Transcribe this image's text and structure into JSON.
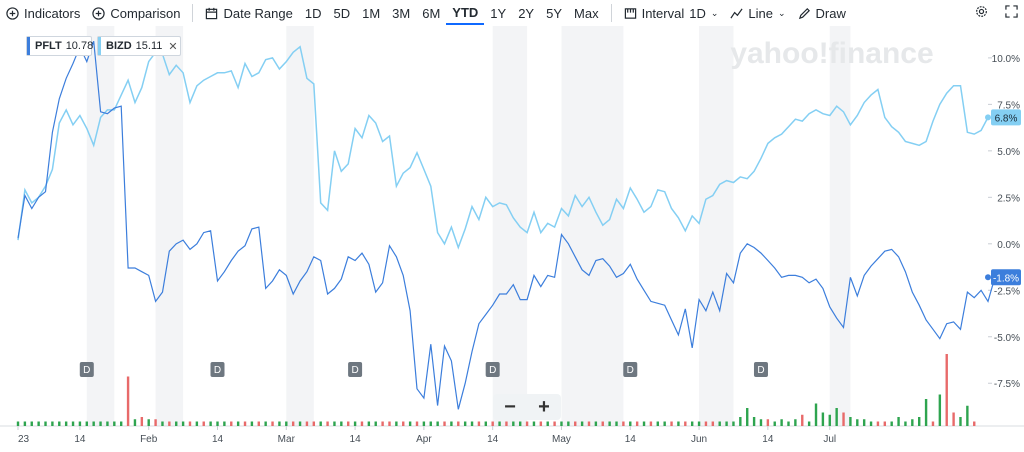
{
  "toolbar": {
    "indicators": "Indicators",
    "comparison": "Comparison",
    "date_range": "Date Range",
    "ranges": [
      "1D",
      "5D",
      "1M",
      "3M",
      "6M",
      "YTD",
      "1Y",
      "2Y",
      "5Y",
      "Max"
    ],
    "active_range": "YTD",
    "interval_label": "Interval",
    "interval_value": "1D",
    "chart_type": "Line",
    "draw": "Draw"
  },
  "legend": [
    {
      "symbol": "PFLT",
      "value": "10.78",
      "color": "#3c7edc"
    },
    {
      "symbol": "BIZD",
      "value": "15.11",
      "color": "#84cff3"
    }
  ],
  "watermark": "yahoo!finance",
  "zoom": {
    "minus": "−",
    "plus": "+"
  },
  "colors": {
    "pflt": "#3c7edc",
    "bizd": "#84cff3",
    "up": "#2ea44f",
    "down": "#e86a6a",
    "band": "#f3f4f6"
  },
  "chart_data": {
    "type": "line",
    "x_ticks": [
      "23",
      "14",
      "Feb",
      "14",
      "Mar",
      "14",
      "Apr",
      "14",
      "May",
      "14",
      "Jun",
      "14",
      "Jul"
    ],
    "x_tick_index": [
      0,
      9,
      19,
      29,
      39,
      49,
      59,
      69,
      79,
      89,
      99,
      109,
      118
    ],
    "y_ticks": [
      10,
      7.5,
      5,
      2.5,
      0,
      -2.5,
      -5,
      -7.5
    ],
    "y_tick_labels": [
      "10.0%",
      "7.5%",
      "5.0%",
      "2.5%",
      "0.0%",
      "-2.5%",
      "-5.0%",
      "-7.5%"
    ],
    "ylim": [
      -9.8,
      11.5
    ],
    "current_labels": [
      {
        "series": "BIZD",
        "value": 6.8,
        "text": "6.8%"
      },
      {
        "series": "PFLT",
        "value": -1.8,
        "text": "-1.8%"
      }
    ],
    "dividend_markers": [
      10,
      29,
      49,
      69,
      89,
      108
    ],
    "dividend_label": "D",
    "shaded_weeks": [
      [
        10,
        14
      ],
      [
        20,
        24
      ],
      [
        39,
        43
      ],
      [
        69,
        74
      ],
      [
        79,
        88
      ],
      [
        99,
        104
      ],
      [
        118,
        121
      ]
    ],
    "series": [
      {
        "name": "BIZD",
        "values": [
          0.2,
          2.9,
          2.2,
          2.5,
          3.1,
          4.0,
          6.5,
          7.2,
          6.4,
          6.9,
          6.2,
          5.3,
          6.8,
          7.2,
          7.2,
          8.0,
          8.8,
          7.6,
          8.4,
          9.8,
          10.3,
          10.2,
          9.1,
          9.6,
          9.2,
          7.6,
          8.5,
          8.8,
          9.0,
          9.2,
          9.2,
          9.3,
          8.4,
          9.7,
          9.0,
          9.2,
          9.9,
          10.0,
          9.4,
          9.8,
          10.3,
          10.6,
          8.9,
          8.6,
          2.2,
          1.8,
          5.0,
          3.9,
          4.3,
          6.2,
          5.7,
          6.9,
          6.5,
          5.5,
          5.8,
          3.1,
          3.8,
          4.1,
          4.9,
          4.0,
          3.1,
          0.6,
          0.0,
          0.9,
          -0.2,
          0.8,
          2.0,
          1.3,
          2.5,
          2.0,
          2.2,
          2.1,
          1.4,
          0.9,
          0.6,
          1.7,
          0.6,
          1.1,
          0.9,
          1.9,
          1.5,
          2.6,
          2.0,
          2.5,
          1.7,
          1.0,
          1.3,
          2.4,
          1.9,
          3.0,
          2.4,
          1.7,
          2.0,
          2.9,
          2.8,
          1.9,
          1.4,
          0.7,
          1.5,
          1.1,
          2.4,
          2.6,
          3.2,
          3.4,
          3.3,
          3.6,
          3.5,
          3.9,
          4.6,
          5.4,
          5.7,
          5.9,
          6.3,
          6.7,
          6.6,
          7.0,
          7.2,
          7.0,
          6.9,
          7.4,
          7.1,
          6.4,
          6.9,
          7.6,
          8.0,
          8.3,
          6.8,
          6.3,
          6.0,
          5.5,
          5.4,
          5.3,
          5.5,
          6.6,
          7.5,
          8.1,
          8.5,
          8.5,
          6.0,
          5.9,
          6.1,
          6.8
        ]
      },
      {
        "name": "PFLT",
        "values": [
          0.3,
          2.6,
          1.9,
          2.5,
          2.8,
          6.0,
          7.8,
          8.9,
          9.7,
          10.6,
          9.8,
          10.9,
          7.1,
          7.0,
          7.3,
          7.4,
          -1.3,
          -1.3,
          -1.5,
          -1.7,
          -3.1,
          -2.6,
          -0.4,
          0.0,
          0.2,
          -0.3,
          0.0,
          0.6,
          0.7,
          -2.0,
          -1.5,
          -0.9,
          -0.4,
          -0.1,
          0.8,
          0.9,
          -2.4,
          -2.0,
          -1.4,
          -1.7,
          -2.7,
          -2.0,
          -1.5,
          -0.7,
          -0.9,
          -2.7,
          -2.4,
          -1.9,
          -0.7,
          -0.9,
          -0.5,
          -1.1,
          -2.6,
          -2.1,
          -0.1,
          -0.7,
          -1.7,
          -3.6,
          -7.8,
          -8.3,
          -5.4,
          -8.7,
          -5.5,
          -6.3,
          -8.9,
          -7.5,
          -5.8,
          -4.3,
          -3.8,
          -3.3,
          -2.7,
          -2.7,
          -2.2,
          -3.0,
          -3.0,
          -1.7,
          -2.3,
          -1.7,
          -1.8,
          0.5,
          0.0,
          -0.7,
          -1.4,
          -1.7,
          -0.9,
          -0.8,
          -1.2,
          -1.8,
          -1.6,
          -1.1,
          -1.9,
          -2.5,
          -3.1,
          -3.2,
          -3.3,
          -4.1,
          -4.9,
          -3.5,
          -5.6,
          -3.0,
          -3.6,
          -2.6,
          -3.6,
          -1.6,
          -2.1,
          -0.5,
          0.0,
          -0.2,
          -0.5,
          -0.9,
          -1.3,
          -1.8,
          -1.7,
          -1.7,
          -1.8,
          -2.1,
          -1.9,
          -2.4,
          -3.4,
          -4.0,
          -4.5,
          -1.8,
          -2.8,
          -1.7,
          -1.2,
          -0.8,
          -0.4,
          -0.3,
          -0.7,
          -1.5,
          -2.6,
          -3.3,
          -4.1,
          -4.6,
          -5.1,
          -4.3,
          -4.2,
          -4.6,
          -2.6,
          -2.9,
          -2.5,
          -3.1,
          -1.8
        ]
      }
    ],
    "volume": {
      "heights": [
        1,
        1,
        1,
        1,
        1,
        1,
        1,
        1,
        1,
        1,
        1,
        1,
        1,
        1,
        1,
        1,
        11,
        1.5,
        2,
        1.5,
        1.5,
        1,
        1,
        1,
        1,
        1,
        1,
        1,
        1,
        1,
        1,
        1,
        1,
        1,
        1,
        1,
        1,
        1,
        1,
        1,
        1,
        1,
        1,
        1,
        1,
        1,
        1,
        1,
        1,
        1,
        1,
        1,
        1,
        1,
        1,
        1,
        1,
        1,
        1,
        1,
        1,
        1,
        1,
        1,
        1,
        1,
        1,
        1,
        1,
        1,
        1,
        1,
        1,
        1,
        1,
        1,
        1,
        1,
        1,
        1,
        1,
        1,
        1,
        1,
        1,
        1,
        1,
        1,
        1,
        1,
        1,
        1,
        1,
        1,
        1,
        1,
        1,
        1,
        1,
        1,
        1,
        1,
        1,
        1,
        1,
        2,
        4,
        2,
        1.5,
        1.5,
        1,
        1.5,
        1,
        1.5,
        2.5,
        1,
        5,
        3,
        2.5,
        4,
        3,
        2,
        1.5,
        1.5,
        1,
        1,
        1,
        1,
        2,
        1,
        1.5,
        2,
        6,
        1,
        7,
        16,
        3,
        2,
        4.5,
        1
      ],
      "up_flags": [
        1,
        1,
        1,
        1,
        1,
        1,
        1,
        1,
        1,
        1,
        1,
        1,
        1,
        1,
        1,
        1,
        0,
        1,
        0,
        1,
        0,
        1,
        0,
        1,
        1,
        0,
        1,
        0,
        1,
        1,
        1,
        0,
        1,
        0,
        1,
        0,
        1,
        0,
        1,
        1,
        0,
        1,
        0,
        0,
        1,
        0,
        1,
        1,
        0,
        1,
        0,
        1,
        1,
        0,
        0,
        1,
        0,
        1,
        0,
        1,
        1,
        1,
        0,
        1,
        0,
        1,
        1,
        0,
        1,
        0,
        1,
        0,
        1,
        1,
        0,
        1,
        0,
        1,
        0,
        1,
        1,
        0,
        1,
        0,
        1,
        0,
        1,
        1,
        0,
        1,
        0,
        1,
        0,
        1,
        1,
        0,
        1,
        0,
        1,
        1,
        0,
        0,
        1,
        1,
        1,
        1,
        1,
        1,
        1,
        0,
        1,
        1,
        1,
        1,
        0,
        1,
        1,
        1,
        1,
        1,
        0,
        1,
        1,
        1,
        1,
        0,
        0,
        1,
        1,
        1,
        1,
        1,
        1,
        0,
        1,
        0,
        0,
        1,
        1,
        0,
        0
      ]
    }
  }
}
